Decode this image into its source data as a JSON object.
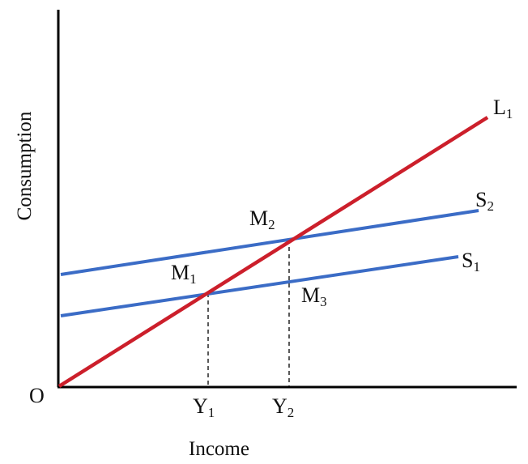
{
  "axes": {
    "x_label": "Income",
    "y_label": "Consumption",
    "origin_label": "O",
    "axis_color": "#000000"
  },
  "lines": [
    {
      "id": "L1",
      "label_main": "L",
      "label_sub": "1",
      "color": "#cc1f2b"
    },
    {
      "id": "S2",
      "label_main": "S",
      "label_sub": "2",
      "color": "#3b6cc6"
    },
    {
      "id": "S1",
      "label_main": "S",
      "label_sub": "1",
      "color": "#3b6cc6"
    }
  ],
  "points": [
    {
      "id": "M1",
      "label_main": "M",
      "label_sub": "1"
    },
    {
      "id": "M2",
      "label_main": "M",
      "label_sub": "2"
    },
    {
      "id": "M3",
      "label_main": "M",
      "label_sub": "3"
    }
  ],
  "ticks": [
    {
      "id": "Y1",
      "label_main": "Y",
      "label_sub": "1"
    },
    {
      "id": "Y2",
      "label_main": "Y",
      "label_sub": "2"
    }
  ],
  "guide_style": "dashed"
}
